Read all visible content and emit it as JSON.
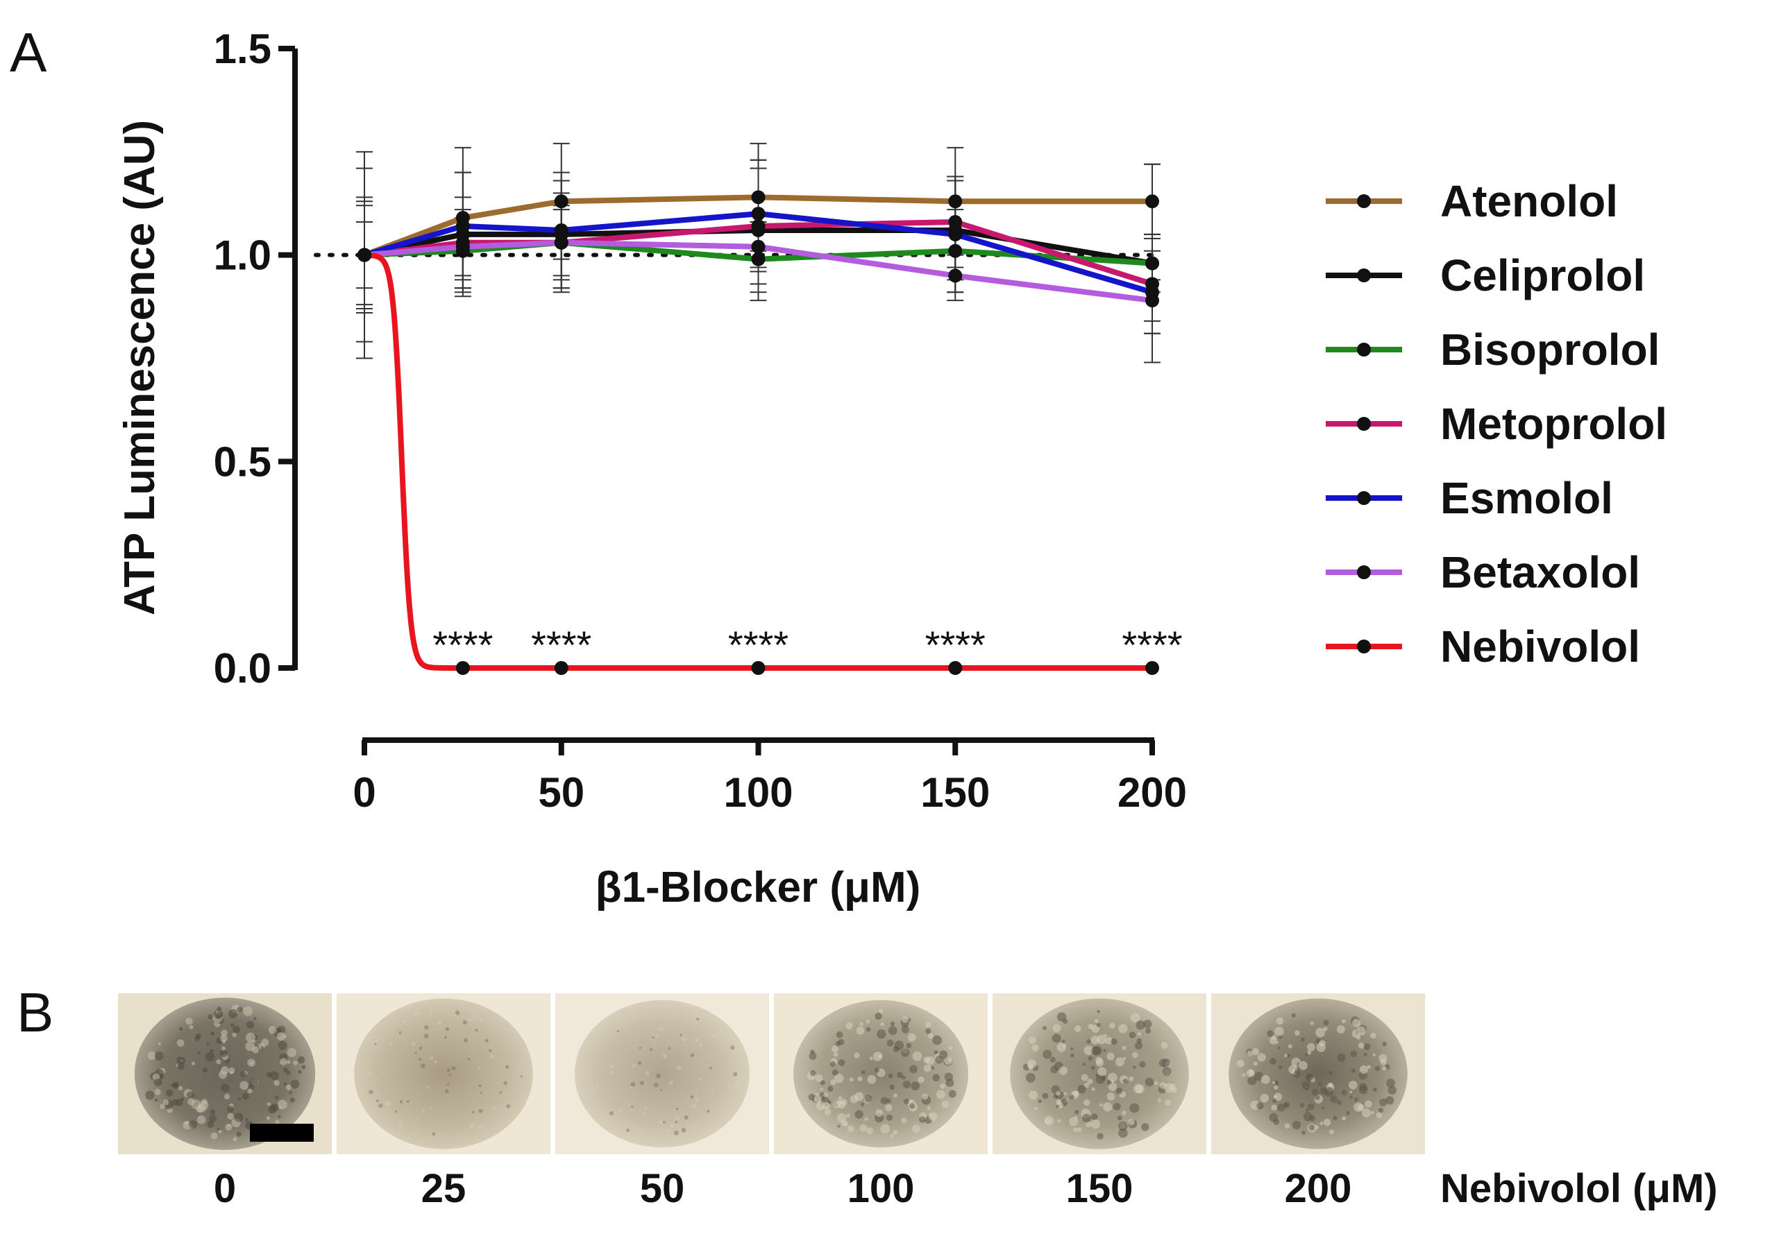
{
  "figure": {
    "panel_a_label": "A",
    "panel_b_label": "B"
  },
  "chart_data": {
    "type": "line",
    "xlabel": "β1-Blocker (μM)",
    "ylabel": "ATP Luminescence (AU)",
    "xlim": [
      0,
      200
    ],
    "ylim": [
      0,
      1.5
    ],
    "x_ticks": [
      0,
      50,
      100,
      150,
      200
    ],
    "y_ticks": [
      0.0,
      0.5,
      1.0,
      1.5
    ],
    "y_tick_labels": [
      "0.0",
      "0.5",
      "1.0",
      "1.5"
    ],
    "x_tick_labels": [
      "0",
      "50",
      "100",
      "150",
      "200"
    ],
    "grid": false,
    "legend_position": "right",
    "reference_line": {
      "y": 1.0,
      "style": "dotted"
    },
    "series": [
      {
        "name": "Atenolol",
        "color": "#9C6B2E",
        "x": [
          0,
          25,
          50,
          100,
          150,
          200
        ],
        "values": [
          1.0,
          1.09,
          1.13,
          1.14,
          1.13,
          1.13
        ],
        "error": [
          0.25,
          0.17,
          0.14,
          0.13,
          0.13,
          0.09
        ]
      },
      {
        "name": "Celiprolol",
        "color": "#111111",
        "x": [
          0,
          25,
          50,
          100,
          150,
          200
        ],
        "values": [
          1.0,
          1.05,
          1.05,
          1.06,
          1.06,
          0.98
        ],
        "error": [
          0.21,
          0.15,
          0.13,
          0.17,
          0.12,
          0.24
        ]
      },
      {
        "name": "Bisoprolol",
        "color": "#1E8A1E",
        "x": [
          0,
          25,
          50,
          100,
          150,
          200
        ],
        "values": [
          1.0,
          1.01,
          1.03,
          0.99,
          1.01,
          0.98
        ],
        "error": [
          0.12,
          0.1,
          0.09,
          0.08,
          0.1,
          0.07
        ]
      },
      {
        "name": "Metoprolol",
        "color": "#C8186E",
        "x": [
          0,
          25,
          50,
          100,
          150,
          200
        ],
        "values": [
          1.0,
          1.03,
          1.03,
          1.07,
          1.08,
          0.93
        ],
        "error": [
          0.13,
          0.11,
          0.12,
          0.14,
          0.11,
          0.12
        ]
      },
      {
        "name": "Esmolol",
        "color": "#1414C8",
        "x": [
          0,
          25,
          50,
          100,
          150,
          200
        ],
        "values": [
          1.0,
          1.07,
          1.06,
          1.1,
          1.05,
          0.91
        ],
        "error": [
          0.14,
          0.13,
          0.14,
          0.13,
          0.14,
          0.1
        ]
      },
      {
        "name": "Betaxolol",
        "color": "#B35CE0",
        "x": [
          0,
          25,
          50,
          100,
          150,
          200
        ],
        "values": [
          1.0,
          1.02,
          1.03,
          1.02,
          0.95,
          0.89
        ],
        "error": [
          0.08,
          0.07,
          0.08,
          0.06,
          0.06,
          0.05
        ]
      },
      {
        "name": "Nebivolol",
        "color": "#E8141E",
        "x": [
          0,
          25,
          50,
          100,
          150,
          200
        ],
        "values": [
          1.0,
          0.0,
          0.0,
          0.0,
          0.0,
          0.0
        ],
        "error": [
          0,
          0,
          0,
          0,
          0,
          0
        ]
      }
    ],
    "annotations": [
      {
        "x": 25,
        "text": "****"
      },
      {
        "x": 50,
        "text": "****"
      },
      {
        "x": 100,
        "text": "****"
      },
      {
        "x": 150,
        "text": "****"
      },
      {
        "x": 200,
        "text": "****"
      }
    ]
  },
  "panel_b": {
    "concentrations": [
      "0",
      "25",
      "50",
      "100",
      "150",
      "200"
    ],
    "unit_caption": "Nebivolol (μM)"
  }
}
